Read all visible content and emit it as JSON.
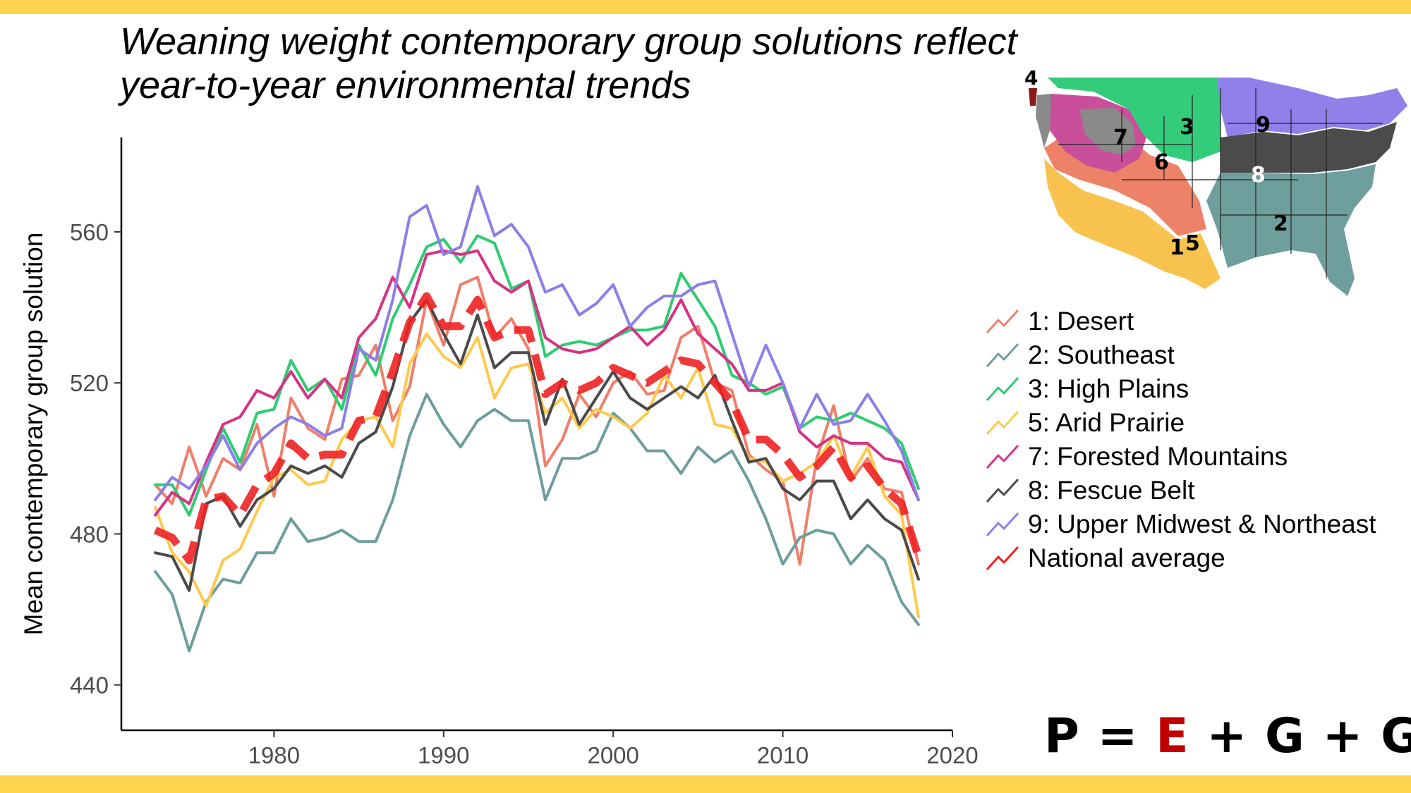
{
  "title_lines": [
    "Weaning weight contemporary group solutions reflect",
    "year-to-year environmental trends"
  ],
  "equation": {
    "p": "P",
    "eq": " = ",
    "e": "E",
    "rest": " + G + G*E"
  },
  "colors": {
    "band": "#ffd54f"
  },
  "map": {
    "region_labels": [
      {
        "text": "1",
        "color": "#000000"
      },
      {
        "text": "2",
        "color": "#000000"
      },
      {
        "text": "3",
        "color": "#000000"
      },
      {
        "text": "4",
        "color": "#000000"
      },
      {
        "text": "5",
        "color": "#000000"
      },
      {
        "text": "6",
        "color": "#000000"
      },
      {
        "text": "7",
        "color": "#000000"
      },
      {
        "text": "8",
        "color": "#ffffff"
      },
      {
        "text": "9",
        "color": "#000000"
      }
    ]
  },
  "chart_data": {
    "type": "line",
    "title": "",
    "xlabel": "",
    "ylabel": "Mean contemporary group solution",
    "xlim": [
      1971,
      2020
    ],
    "ylim": [
      428,
      585
    ],
    "xticks": [
      1980,
      1990,
      2000,
      2010,
      2020
    ],
    "yticks": [
      440,
      480,
      520,
      560
    ],
    "grid": false,
    "legend_position": "right",
    "x": [
      1973,
      1974,
      1975,
      1976,
      1977,
      1978,
      1979,
      1980,
      1981,
      1982,
      1983,
      1984,
      1985,
      1986,
      1987,
      1988,
      1989,
      1990,
      1991,
      1992,
      1993,
      1994,
      1995,
      1996,
      1997,
      1998,
      1999,
      2000,
      2001,
      2002,
      2003,
      2004,
      2005,
      2006,
      2007,
      2008,
      2009,
      2010,
      2011,
      2012,
      2013,
      2014,
      2015,
      2016,
      2017,
      2018
    ],
    "series": [
      {
        "name": "1: Desert",
        "color": "#f07f6a",
        "dashed": false,
        "values": [
          493,
          488,
          503,
          490,
          500,
          497,
          509,
          490,
          516,
          508,
          505,
          521,
          522,
          530,
          510,
          519,
          542,
          530,
          546,
          548,
          532,
          537,
          529,
          498,
          505,
          517,
          511,
          520,
          523,
          517,
          518,
          532,
          535,
          520,
          518,
          501,
          497,
          494,
          472,
          500,
          514,
          494,
          500,
          492,
          491,
          472
        ]
      },
      {
        "name": "2: Southeast",
        "color": "#6d9e9c",
        "dashed": false,
        "values": [
          470,
          464,
          449,
          462,
          468,
          467,
          475,
          475,
          484,
          478,
          479,
          481,
          478,
          478,
          489,
          506,
          517,
          509,
          503,
          510,
          513,
          510,
          510,
          489,
          500,
          500,
          502,
          512,
          508,
          502,
          502,
          496,
          503,
          499,
          502,
          494,
          484,
          472,
          479,
          481,
          480,
          472,
          477,
          473,
          462,
          456
        ]
      },
      {
        "name": "3: High Plains",
        "color": "#2ecc71",
        "dashed": false,
        "values": [
          493,
          493,
          485,
          497,
          508,
          499,
          512,
          513,
          526,
          518,
          521,
          513,
          530,
          522,
          537,
          546,
          556,
          558,
          552,
          559,
          557,
          545,
          547,
          527,
          530,
          531,
          530,
          532,
          534,
          534,
          535,
          549,
          542,
          535,
          522,
          520,
          517,
          519,
          508,
          511,
          510,
          512,
          510,
          508,
          504,
          492
        ]
      },
      {
        "name": "5: Arid Prairie",
        "color": "#ffc94d",
        "dashed": false,
        "values": [
          487,
          475,
          470,
          461,
          473,
          476,
          486,
          495,
          497,
          493,
          494,
          505,
          510,
          511,
          503,
          525,
          533,
          527,
          524,
          532,
          516,
          524,
          525,
          512,
          516,
          508,
          513,
          511,
          508,
          512,
          522,
          516,
          524,
          509,
          508,
          500,
          499,
          494,
          496,
          499,
          506,
          495,
          503,
          490,
          485,
          458
        ]
      },
      {
        "name": "7: Forested Mountains",
        "color": "#d63384",
        "dashed": false,
        "values": [
          485,
          491,
          488,
          499,
          509,
          511,
          518,
          516,
          523,
          516,
          521,
          516,
          532,
          537,
          548,
          540,
          554,
          555,
          554,
          555,
          547,
          544,
          547,
          532,
          529,
          528,
          529,
          532,
          535,
          530,
          534,
          542,
          533,
          529,
          525,
          518,
          518,
          520,
          507,
          503,
          506,
          504,
          504,
          500,
          499,
          489
        ]
      },
      {
        "name": "8: Fescue Belt",
        "color": "#4a4a4a",
        "dashed": false,
        "values": [
          475,
          474,
          465,
          488,
          490,
          482,
          489,
          492,
          498,
          496,
          498,
          495,
          504,
          507,
          519,
          536,
          542,
          533,
          525,
          538,
          524,
          528,
          528,
          509,
          521,
          509,
          516,
          523,
          516,
          513,
          516,
          519,
          516,
          522,
          510,
          499,
          500,
          492,
          489,
          494,
          494,
          484,
          489,
          484,
          481,
          468
        ]
      },
      {
        "name": "9: Upper Midwest & Northeast",
        "color": "#8b7fe8",
        "dashed": false,
        "values": [
          489,
          495,
          492,
          498,
          506,
          497,
          504,
          508,
          511,
          509,
          506,
          508,
          529,
          526,
          542,
          564,
          567,
          554,
          556,
          572,
          559,
          562,
          556,
          544,
          546,
          538,
          541,
          546,
          535,
          540,
          543,
          543,
          546,
          547,
          533,
          519,
          530,
          520,
          508,
          517,
          509,
          510,
          517,
          510,
          502,
          489
        ]
      },
      {
        "name": "National average",
        "color": "#ee2222",
        "dashed": true,
        "values": [
          481,
          479,
          473,
          489,
          490,
          485,
          493,
          496,
          504,
          500,
          501,
          501,
          510,
          511,
          523,
          536,
          543,
          535,
          535,
          542,
          532,
          534,
          534,
          517,
          520,
          518,
          520,
          524,
          522,
          520,
          523,
          526,
          525,
          520,
          515,
          505,
          505,
          501,
          495,
          498,
          503,
          495,
          498,
          492,
          488,
          474
        ]
      }
    ]
  }
}
